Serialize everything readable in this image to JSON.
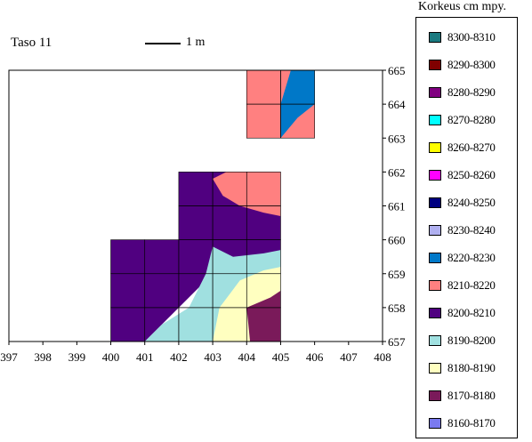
{
  "map": {
    "level_title": "Taso 11",
    "scale_label": "1 m",
    "x_ticks": [
      "397",
      "398",
      "399",
      "400",
      "401",
      "402",
      "403",
      "404",
      "405",
      "406",
      "407",
      "408"
    ],
    "y_ticks": [
      "665",
      "664",
      "663",
      "662",
      "661",
      "660",
      "659",
      "658",
      "657"
    ],
    "x_range": [
      397,
      408
    ],
    "y_range": [
      657,
      665
    ]
  },
  "legend": {
    "title": "Korkeus cm mpy.",
    "items": [
      {
        "label": "8300-8310",
        "color": "#1a7a80"
      },
      {
        "label": "8290-8300",
        "color": "#800000"
      },
      {
        "label": "8280-8290",
        "color": "#800080"
      },
      {
        "label": "8270-8280",
        "color": "#00ffff"
      },
      {
        "label": "8260-8270",
        "color": "#ffff00"
      },
      {
        "label": "8250-8260",
        "color": "#ff00ff"
      },
      {
        "label": "8240-8250",
        "color": "#000080"
      },
      {
        "label": "8230-8240",
        "color": "#b0b0f0"
      },
      {
        "label": "8220-8230",
        "color": "#0078c8"
      },
      {
        "label": "8210-8220",
        "color": "#ff8080"
      },
      {
        "label": "8200-8210",
        "color": "#500080"
      },
      {
        "label": "8190-8200",
        "color": "#a0e0e0"
      },
      {
        "label": "8180-8190",
        "color": "#ffffc0"
      },
      {
        "label": "8170-8180",
        "color": "#7a1a5a"
      },
      {
        "label": "8160-8170",
        "color": "#7a7af0"
      }
    ]
  },
  "regions": [
    {
      "name": "band-8210-8220",
      "color": "#ff8080",
      "points": [
        [
          404,
          665
        ],
        [
          405.3,
          665
        ],
        [
          406,
          664
        ],
        [
          406,
          663
        ],
        [
          404,
          663
        ]
      ]
    },
    {
      "name": "band-8220-8230",
      "color": "#0078c8",
      "points": [
        [
          405.3,
          665
        ],
        [
          406,
          665
        ],
        [
          406,
          664
        ],
        [
          405.5,
          663.6
        ],
        [
          405,
          663
        ],
        [
          405,
          664
        ]
      ]
    },
    {
      "name": "band-8200-8210",
      "color": "#500080",
      "points": [
        [
          400,
          660
        ],
        [
          402,
          660
        ],
        [
          402,
          662
        ],
        [
          405,
          662
        ],
        [
          405,
          659.7
        ],
        [
          404.5,
          659.5
        ],
        [
          403.5,
          659.2
        ],
        [
          403,
          659
        ],
        [
          402.5,
          658.5
        ],
        [
          401.5,
          657.5
        ],
        [
          401,
          657
        ],
        [
          400,
          657
        ]
      ]
    },
    {
      "name": "band-8210-8220-b",
      "color": "#ff8080",
      "points": [
        [
          403.4,
          662
        ],
        [
          405,
          662
        ],
        [
          405,
          660.7
        ],
        [
          404.5,
          660.8
        ],
        [
          403.8,
          661
        ],
        [
          403.3,
          661.3
        ],
        [
          403,
          661.8
        ]
      ]
    },
    {
      "name": "band-8190-8200",
      "color": "#a0e0e0",
      "points": [
        [
          401,
          657
        ],
        [
          401.5,
          657.5
        ],
        [
          402.3,
          658
        ],
        [
          402.8,
          659
        ],
        [
          403,
          659.8
        ],
        [
          403.6,
          659.5
        ],
        [
          404.5,
          659.6
        ],
        [
          405,
          659.7
        ],
        [
          405,
          657
        ]
      ]
    },
    {
      "name": "band-8180-8190",
      "color": "#ffffc0",
      "points": [
        [
          403,
          657
        ],
        [
          403.2,
          658
        ],
        [
          403.8,
          658.8
        ],
        [
          404.5,
          659.1
        ],
        [
          405,
          659.2
        ],
        [
          405,
          657
        ]
      ]
    },
    {
      "name": "band-8170-8180",
      "color": "#7a1a5a",
      "points": [
        [
          404,
          658
        ],
        [
          404.7,
          658.3
        ],
        [
          405,
          658.5
        ],
        [
          405,
          657
        ],
        [
          404.1,
          657
        ]
      ]
    }
  ]
}
